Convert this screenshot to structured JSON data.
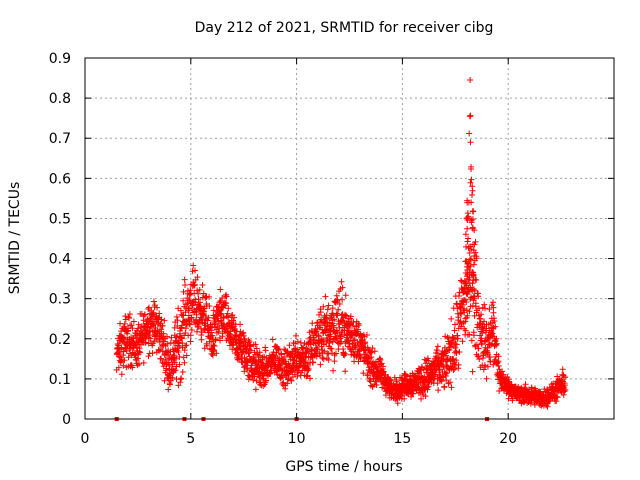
{
  "chart_data": {
    "type": "scatter",
    "title": "Day 212 of 2021, SRMTID for receiver cibg",
    "xlabel": "GPS time / hours",
    "ylabel": "SRMTID / TECUs",
    "xlim": [
      0,
      25
    ],
    "ylim": [
      0,
      0.9
    ],
    "x_ticks": [
      "0",
      "5",
      "10",
      "15",
      "20"
    ],
    "y_ticks": [
      "0",
      "0.1",
      "0.2",
      "0.3",
      "0.4",
      "0.5",
      "0.6",
      "0.7",
      "0.8",
      "0.9"
    ],
    "grid": true,
    "marker": "+",
    "series_color": "#ff0000",
    "peak": {
      "x": 18.2,
      "y": 0.845
    },
    "zero_markers_x": [
      1.5,
      4.7,
      5.6,
      10.0,
      19.0
    ],
    "trend": {
      "x": [
        1.5,
        2.0,
        2.5,
        3.0,
        3.5,
        4.0,
        4.5,
        5.0,
        5.5,
        6.0,
        6.5,
        7.0,
        7.5,
        8.0,
        8.5,
        9.0,
        9.5,
        10.0,
        10.5,
        11.0,
        11.5,
        12.0,
        12.5,
        13.0,
        13.5,
        14.0,
        14.5,
        15.0,
        15.5,
        16.0,
        16.5,
        17.0,
        17.5,
        18.0,
        18.3,
        18.6,
        19.0,
        19.3,
        19.6,
        20.0,
        20.5,
        21.0,
        21.5,
        22.0,
        22.7
      ],
      "y": [
        0.16,
        0.2,
        0.18,
        0.24,
        0.22,
        0.13,
        0.2,
        0.29,
        0.27,
        0.2,
        0.26,
        0.2,
        0.17,
        0.13,
        0.12,
        0.15,
        0.12,
        0.16,
        0.15,
        0.2,
        0.22,
        0.24,
        0.21,
        0.19,
        0.13,
        0.11,
        0.07,
        0.08,
        0.09,
        0.1,
        0.12,
        0.13,
        0.19,
        0.3,
        0.38,
        0.23,
        0.18,
        0.22,
        0.1,
        0.08,
        0.06,
        0.06,
        0.05,
        0.06,
        0.09
      ],
      "spread": [
        0.05,
        0.06,
        0.05,
        0.06,
        0.06,
        0.05,
        0.09,
        0.08,
        0.06,
        0.06,
        0.06,
        0.05,
        0.05,
        0.05,
        0.04,
        0.04,
        0.04,
        0.05,
        0.05,
        0.06,
        0.08,
        0.09,
        0.06,
        0.05,
        0.04,
        0.03,
        0.025,
        0.025,
        0.03,
        0.04,
        0.04,
        0.05,
        0.08,
        0.12,
        0.2,
        0.08,
        0.07,
        0.09,
        0.03,
        0.02,
        0.02,
        0.02,
        0.02,
        0.02,
        0.03
      ]
    }
  }
}
